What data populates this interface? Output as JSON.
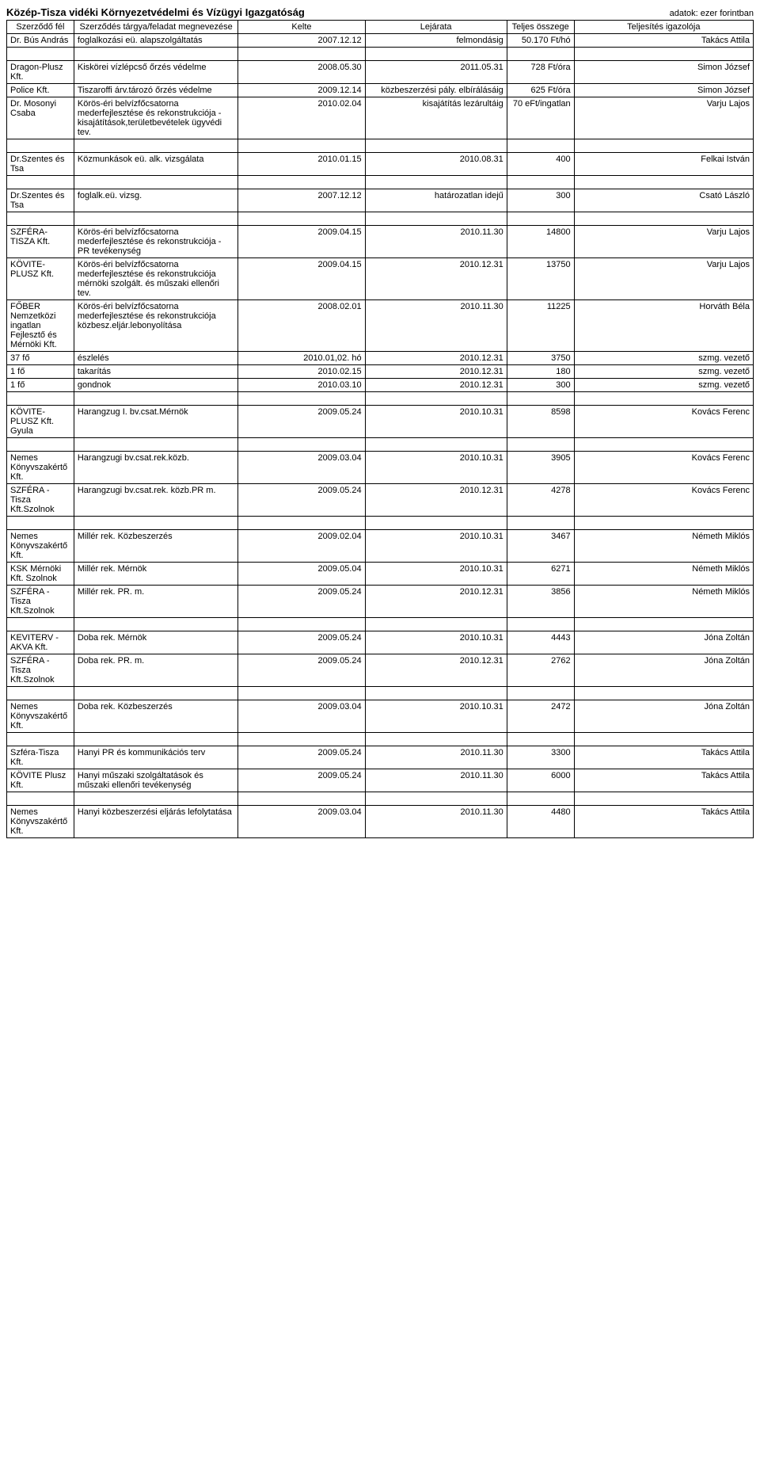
{
  "header": {
    "title": "Közép-Tisza vidéki Környezetvédelmi és Vízügyi Igazgatóság",
    "subtitle": "adatok: ezer forintban"
  },
  "columns": {
    "a": "Szerződő fél",
    "b": "Szerződés tárgya/feladat megnevezése",
    "c": "Kelte",
    "d": "Lejárata",
    "e": "Teljes összege",
    "f": "Teljesítés igazolója"
  },
  "rows": [
    {
      "a": "Dr. Bús András",
      "b": "foglalkozási eü. alapszolgáltatás",
      "c": "2007.12.12",
      "d": "felmondásig",
      "e": "50.170 Ft/hó",
      "f": "Takács Attila",
      "spacer": true
    },
    {
      "a": "Dragon-Plusz Kft.",
      "b": "Kiskörei vízlépcső őrzés védelme",
      "c": "2008.05.30",
      "d": "2011.05.31",
      "e": "728 Ft/óra",
      "f": "Simon József"
    },
    {
      "a": "Police Kft.",
      "b": "Tiszaroffi árv.tározó őrzés védelme",
      "c": "2009.12.14",
      "d": "közbeszerzési pály. elbírálásáig",
      "e": "625 Ft/óra",
      "f": "Simon József"
    },
    {
      "a": "Dr. Mosonyi Csaba",
      "b": "Körös-éri belvízfőcsatorna mederfejlesztése és rekonstrukciója - kisajátítások,területbevételek ügyvédi tev.",
      "c": "2010.02.04",
      "d": "kisajátítás lezárultáig",
      "e": "70 eFt/ingatlan",
      "f": "Varju Lajos",
      "spacer": true
    },
    {
      "a": "Dr.Szentes és Tsa",
      "b": "Közmunkások eü. alk. vizsgálata",
      "c": "2010.01.15",
      "d": "2010.08.31",
      "e": "400",
      "f": "Felkai István",
      "spacer": true
    },
    {
      "a": "Dr.Szentes és Tsa",
      "b": "foglalk.eü. vizsg.",
      "c": "2007.12.12",
      "d": "határozatlan idejű",
      "e": "300",
      "f": "Csató László",
      "spacer": true
    },
    {
      "a": "SZFÉRA-TISZA Kft.",
      "b": "Körös-éri belvízfőcsatorna mederfejlesztése és rekonstrukciója - PR tevékenység",
      "c": "2009.04.15",
      "d": "2010.11.30",
      "e": "14800",
      "f": "Varju Lajos"
    },
    {
      "a": "KÖVITE-PLUSZ Kft.",
      "b": "Körös-éri belvízfőcsatorna mederfejlesztése és rekonstrukciója mérnöki szolgált. és műszaki ellenőri tev.",
      "c": "2009.04.15",
      "d": "2010.12.31",
      "e": "13750",
      "f": "Varju Lajos"
    },
    {
      "a": "FŐBER Nemzetközi ingatlan Fejlesztő és Mérnöki Kft.",
      "b": "Körös-éri belvízfőcsatorna mederfejlesztése és rekonstrukciója közbesz.eljár.lebonyolítása",
      "c": "2008.02.01",
      "d": "2010.11.30",
      "e": "11225",
      "f": "Horváth Béla"
    },
    {
      "a": "37 fő",
      "b": "észlelés",
      "c": "2010.01,02. hó",
      "d": "2010.12.31",
      "e": "3750",
      "f": "szmg. vezető"
    },
    {
      "a": "1 fő",
      "b": "takarítás",
      "c": "2010.02.15",
      "d": "2010.12.31",
      "e": "180",
      "f": "szmg. vezető"
    },
    {
      "a": "1 fő",
      "b": "gondnok",
      "c": "2010.03.10",
      "d": "2010.12.31",
      "e": "300",
      "f": "szmg. vezető",
      "spacer": true
    },
    {
      "a": "KÖVITE-PLUSZ Kft. Gyula",
      "b": "Harangzug I. bv.csat.Mérnök",
      "c": "2009.05.24",
      "d": "2010.10.31",
      "e": "8598",
      "f": "Kovács Ferenc",
      "spacer": true
    },
    {
      "a": "Nemes Könyvszakértő Kft.",
      "b": "Harangzugi bv.csat.rek.közb.",
      "c": "2009.03.04",
      "d": "2010.10.31",
      "e": "3905",
      "f": "Kovács Ferenc"
    },
    {
      "a": "SZFÉRA - Tisza Kft.Szolnok",
      "b": "Harangzugi bv.csat.rek. közb.PR m.",
      "c": "2009.05.24",
      "d": "2010.12.31",
      "e": "4278",
      "f": "Kovács Ferenc",
      "spacer": true
    },
    {
      "a": "Nemes Könyvszakértő Kft.",
      "b": "Millér rek. Közbeszerzés",
      "c": "2009.02.04",
      "d": "2010.10.31",
      "e": "3467",
      "f": "Németh Miklós"
    },
    {
      "a": "KSK Mérnöki Kft. Szolnok",
      "b": "Millér rek. Mérnök",
      "c": "2009.05.04",
      "d": "2010.10.31",
      "e": "6271",
      "f": "Németh Miklós"
    },
    {
      "a": "SZFÉRA - Tisza Kft.Szolnok",
      "b": "Millér rek. PR. m.",
      "c": "2009.05.24",
      "d": "2010.12.31",
      "e": "3856",
      "f": "Németh Miklós",
      "spacer": true
    },
    {
      "a": "KEVITERV -AKVA Kft.",
      "b": "Doba rek. Mérnök",
      "c": "2009.05.24",
      "d": "2010.10.31",
      "e": "4443",
      "f": "Jóna Zoltán"
    },
    {
      "a": "SZFÉRA - Tisza Kft.Szolnok",
      "b": "Doba  rek. PR. m.",
      "c": "2009.05.24",
      "d": "2010.12.31",
      "e": "2762",
      "f": "Jóna Zoltán",
      "spacer": true
    },
    {
      "a": "Nemes Könyvszakértő Kft.",
      "b": "Doba rek. Közbeszerzés",
      "c": "2009.03.04",
      "d": "2010.10.31",
      "e": "2472",
      "f": "Jóna Zoltán",
      "spacer": true
    },
    {
      "a": "Szféra-Tisza Kft.",
      "b": "Hanyi PR és kommunikációs terv",
      "c": "2009.05.24",
      "d": "2010.11.30",
      "e": "3300",
      "f": "Takács Attila"
    },
    {
      "a": "KÖVITE Plusz Kft.",
      "b": "Hanyi műszaki szolgáltatások és műszaki ellenőri tevékenység",
      "c": "2009.05.24",
      "d": "2010.11.30",
      "e": "6000",
      "f": "Takács Attila",
      "spacer": true
    },
    {
      "a": "Nemes Könyvszakértő Kft.",
      "b": "Hanyi közbeszerzési eljárás lefolytatása",
      "c": "2009.03.04",
      "d": "2010.11.30",
      "e": "4480",
      "f": "Takács Attila"
    }
  ]
}
